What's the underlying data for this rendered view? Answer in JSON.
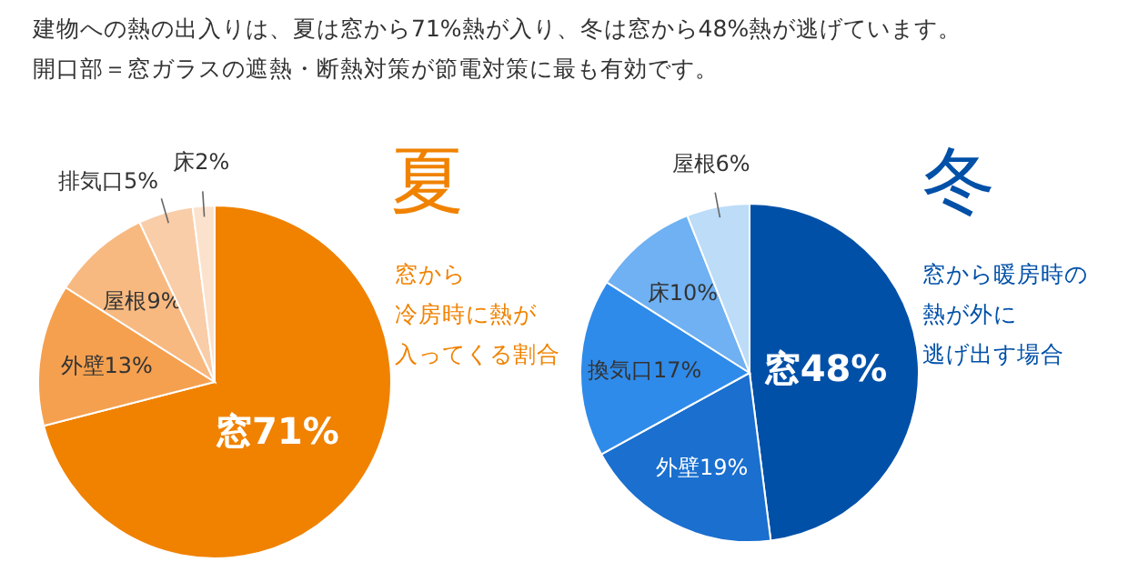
{
  "chart_data": [
    {
      "type": "other",
      "title": "建物への熱の出入りは、夏は窓から71%熱が入り、冬は窓から48%熱が逃げています。",
      "subtitle": "開口部＝窓ガラスの遮熱・断熱対策が節電対策に最も有効です。"
    },
    {
      "type": "pie",
      "title": "夏",
      "annotations": [
        "窓から",
        "冷房時に熱が",
        "入ってくる割合"
      ],
      "categories": [
        "窓",
        "外壁",
        "屋根",
        "排気口",
        "床"
      ],
      "values": [
        71,
        13,
        9,
        5,
        2
      ],
      "value_labels": [
        "71%",
        "13%",
        "9%",
        "5%",
        "2%"
      ],
      "colors": [
        "#f08200",
        "#f5a04f",
        "#f7b980",
        "#f9cda8",
        "#fbe2cc"
      ]
    },
    {
      "type": "pie",
      "title": "冬",
      "annotations": [
        "窓から暖房時の",
        "熱が外に",
        "逃げ出す場合"
      ],
      "categories": [
        "窓",
        "外壁",
        "換気口",
        "床",
        "屋根"
      ],
      "values": [
        48,
        19,
        17,
        10,
        6
      ],
      "value_labels": [
        "48%",
        "19%",
        "17%",
        "10%",
        "6%"
      ],
      "colors": [
        "#0050a8",
        "#1a6fcf",
        "#2f8bea",
        "#6fb1f2",
        "#bcdcf8"
      ]
    }
  ]
}
